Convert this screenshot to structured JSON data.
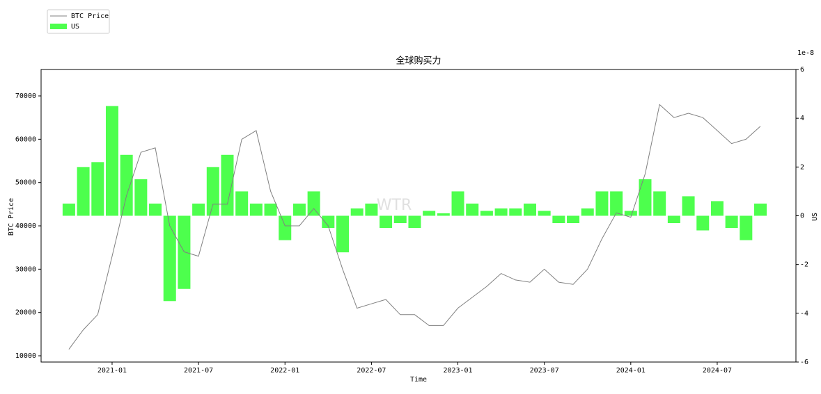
{
  "chart_data": {
    "type": "line",
    "title": "全球购买力",
    "x_label": "Time",
    "y_label": "BTC Price",
    "y2_label": "US",
    "y2_offset_label": "1e-8",
    "watermark": "WTR",
    "x": [
      "2020-10",
      "2020-11",
      "2020-12",
      "2021-01",
      "2021-02",
      "2021-03",
      "2021-04",
      "2021-05",
      "2021-06",
      "2021-07",
      "2021-08",
      "2021-09",
      "2021-10",
      "2021-11",
      "2021-12",
      "2022-01",
      "2022-02",
      "2022-03",
      "2022-04",
      "2022-05",
      "2022-06",
      "2022-07",
      "2022-08",
      "2022-09",
      "2022-10",
      "2022-11",
      "2022-12",
      "2023-01",
      "2023-02",
      "2023-03",
      "2023-04",
      "2023-05",
      "2023-06",
      "2023-07",
      "2023-08",
      "2023-09",
      "2023-10",
      "2023-11",
      "2023-12",
      "2024-01",
      "2024-02",
      "2024-03",
      "2024-04",
      "2024-05",
      "2024-06",
      "2024-07",
      "2024-08",
      "2024-09",
      "2024-10"
    ],
    "xticks": [
      "2021-01",
      "2021-07",
      "2022-01",
      "2022-07",
      "2023-01",
      "2023-07",
      "2024-01",
      "2024-07"
    ],
    "series": [
      {
        "name": "BTC Price",
        "type": "line",
        "color": "#808080",
        "values": [
          11500,
          16000,
          19500,
          33000,
          47000,
          57000,
          58000,
          40000,
          34000,
          33000,
          45000,
          45000,
          60000,
          62000,
          48000,
          40000,
          40000,
          44000,
          40000,
          30000,
          21000,
          22000,
          23000,
          19500,
          19500,
          17000,
          17000,
          21000,
          23500,
          26000,
          29000,
          27500,
          27000,
          30000,
          27000,
          26500,
          30000,
          37000,
          43000,
          42000,
          52000,
          68000,
          65000,
          66000,
          65000,
          62000,
          59000,
          60000,
          63000
        ]
      },
      {
        "name": "US",
        "type": "bar",
        "axis": "y2",
        "color": "#4dff4d",
        "values": [
          0.5,
          2.0,
          2.2,
          4.5,
          2.5,
          1.5,
          0.5,
          -3.5,
          -3.0,
          0.5,
          2.0,
          2.5,
          1.0,
          0.5,
          0.5,
          -1.0,
          0.5,
          1.0,
          -0.5,
          -1.5,
          0.3,
          0.5,
          -0.5,
          -0.3,
          -0.5,
          0.2,
          0.1,
          1.0,
          0.5,
          0.2,
          0.3,
          0.3,
          0.5,
          0.2,
          -0.3,
          -0.3,
          0.3,
          1.0,
          1.0,
          0.2,
          1.5,
          1.0,
          -0.3,
          0.8,
          -0.6,
          0.6,
          -0.5,
          -1.0,
          0.5
        ]
      }
    ],
    "ylim": [
      8560,
      76100
    ],
    "yticks": [
      10000,
      20000,
      30000,
      40000,
      50000,
      60000,
      70000
    ],
    "y2lim": [
      -6,
      6
    ],
    "y2ticks": [
      -6,
      -4,
      -2,
      0,
      2,
      4,
      6
    ]
  }
}
